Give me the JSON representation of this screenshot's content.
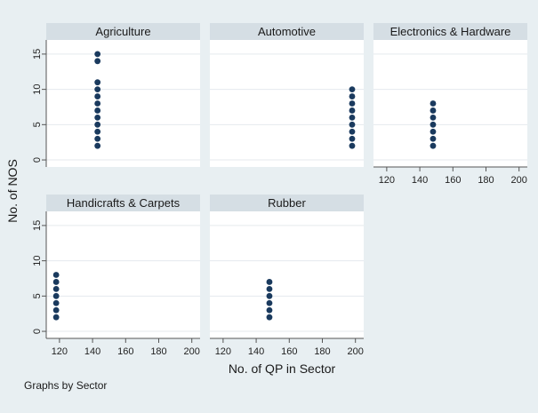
{
  "chart_data": {
    "type": "scatter",
    "layout": "small-multiples",
    "xlabel": "No. of QP in Sector",
    "ylabel": "No. of NOS",
    "note": "Graphs by Sector",
    "xlim": [
      112,
      205
    ],
    "ylim": [
      -1,
      17
    ],
    "x_ticks": [
      120,
      140,
      160,
      180,
      200
    ],
    "y_ticks": [
      0,
      5,
      10,
      15
    ],
    "colors": {
      "marker": "#1a3a5e",
      "header": "#d5dee4",
      "plot_bg": "#ffffff",
      "page_bg": "#e8eff2",
      "grid": "#e5eaee"
    },
    "panels": [
      {
        "title": "Agriculture",
        "x": [
          143,
          143,
          143,
          143,
          143,
          143,
          143,
          143,
          143,
          143,
          143,
          143
        ],
        "y": [
          2,
          3,
          4,
          5,
          6,
          7,
          8,
          9,
          10,
          11,
          14,
          15
        ]
      },
      {
        "title": "Automotive",
        "x": [
          198,
          198,
          198,
          198,
          198,
          198,
          198,
          198,
          198
        ],
        "y": [
          2,
          3,
          4,
          5,
          6,
          7,
          8,
          9,
          10
        ]
      },
      {
        "title": "Electronics & Hardware",
        "x": [
          148,
          148,
          148,
          148,
          148,
          148,
          148
        ],
        "y": [
          2,
          3,
          4,
          5,
          6,
          7,
          8
        ]
      },
      {
        "title": "Handicrafts & Carpets",
        "x": [
          118,
          118,
          118,
          118,
          118,
          118,
          118
        ],
        "y": [
          2,
          3,
          4,
          5,
          6,
          7,
          8
        ]
      },
      {
        "title": "Rubber",
        "x": [
          148,
          148,
          148,
          148,
          148,
          148
        ],
        "y": [
          2,
          3,
          4,
          5,
          6,
          7
        ]
      }
    ]
  }
}
